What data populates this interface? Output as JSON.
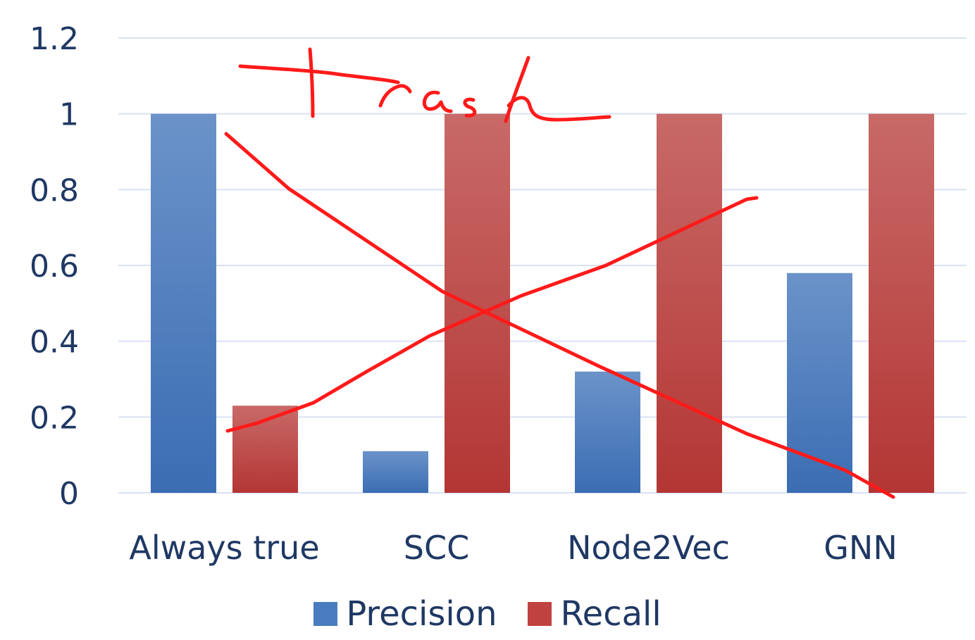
{
  "chart_data": {
    "type": "bar",
    "categories": [
      "Always true",
      "SCC",
      "Node2Vec",
      "GNN"
    ],
    "series": [
      {
        "name": "Precision",
        "values": [
          1.0,
          0.11,
          0.32,
          0.58
        ],
        "color": "#4a7cc0"
      },
      {
        "name": "Recall",
        "values": [
          0.23,
          1.0,
          1.0,
          1.0
        ],
        "color": "#c04240"
      }
    ],
    "yticks": [
      "0",
      "0.2",
      "0.4",
      "0.6",
      "0.8",
      "1",
      "1.2"
    ],
    "ylim": [
      0,
      1.2
    ],
    "grid": true,
    "legend_position": "bottom",
    "annotation": "Trash",
    "colors": {
      "axis_text": "#1f3864",
      "grid": "#d9e2f3",
      "annotation_ink": "#ff1a1a"
    }
  }
}
